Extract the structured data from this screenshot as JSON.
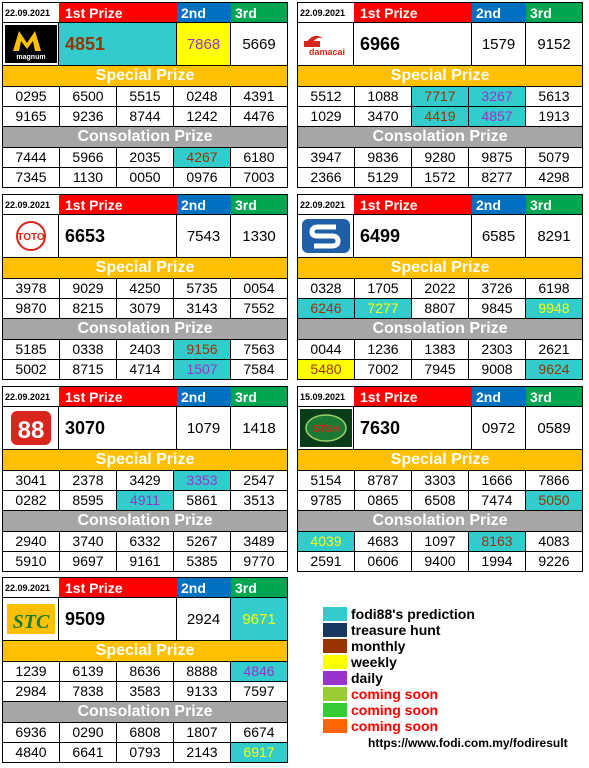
{
  "labels": {
    "first": "1st Prize",
    "second": "2nd",
    "third": "3rd",
    "special": "Special Prize",
    "consolation": "Consolation Prize"
  },
  "colors": {
    "prediction": "#33cccc",
    "treasure": "#17375e",
    "monthly": "#993300",
    "weekly": "#ffff00",
    "daily": "#9933cc",
    "soon1": "#99cc33",
    "soon2": "#33cc33",
    "soon3": "#ff6600"
  },
  "blocks": [
    {
      "id": "magnum",
      "logo": "magnum-logo",
      "date": "22.09.2021",
      "first": {
        "v": "4851",
        "bg": "prediction",
        "fg": "monthly"
      },
      "second": {
        "v": "7868",
        "bg": "weekly",
        "fg": "daily"
      },
      "third": {
        "v": "5669"
      },
      "special": [
        [
          {
            "v": "0295"
          },
          {
            "v": "6500"
          },
          {
            "v": "5515"
          },
          {
            "v": "0248"
          },
          {
            "v": "4391"
          }
        ],
        [
          {
            "v": "9165"
          },
          {
            "v": "9236"
          },
          {
            "v": "8744"
          },
          {
            "v": "1242"
          },
          {
            "v": "4476"
          }
        ]
      ],
      "consolation": [
        [
          {
            "v": "7444"
          },
          {
            "v": "5966"
          },
          {
            "v": "2035"
          },
          {
            "v": "4267",
            "bg": "prediction",
            "fg": "monthly"
          },
          {
            "v": "6180"
          }
        ],
        [
          {
            "v": "7345"
          },
          {
            "v": "1130"
          },
          {
            "v": "0050"
          },
          {
            "v": "0976"
          },
          {
            "v": "7003"
          }
        ]
      ]
    },
    {
      "id": "damacai",
      "logo": "damacai-logo",
      "date": "22.09.2021",
      "first": {
        "v": "6966"
      },
      "second": {
        "v": "1579"
      },
      "third": {
        "v": "9152"
      },
      "special": [
        [
          {
            "v": "5512"
          },
          {
            "v": "1088"
          },
          {
            "v": "7717",
            "bg": "prediction",
            "fg": "monthly"
          },
          {
            "v": "3267",
            "bg": "prediction",
            "fg": "daily"
          },
          {
            "v": "5613"
          }
        ],
        [
          {
            "v": "1029"
          },
          {
            "v": "3470"
          },
          {
            "v": "4419",
            "bg": "prediction",
            "fg": "monthly"
          },
          {
            "v": "4857",
            "bg": "prediction",
            "fg": "daily"
          },
          {
            "v": "1913"
          }
        ]
      ],
      "consolation": [
        [
          {
            "v": "3947"
          },
          {
            "v": "9836"
          },
          {
            "v": "9280"
          },
          {
            "v": "9875"
          },
          {
            "v": "5079"
          }
        ],
        [
          {
            "v": "2366"
          },
          {
            "v": "5129"
          },
          {
            "v": "1572"
          },
          {
            "v": "8277"
          },
          {
            "v": "4298"
          }
        ]
      ]
    },
    {
      "id": "toto",
      "logo": "toto-logo",
      "date": "22.09.2021",
      "first": {
        "v": "6653"
      },
      "second": {
        "v": "7543"
      },
      "third": {
        "v": "1330"
      },
      "special": [
        [
          {
            "v": "3978"
          },
          {
            "v": "9029"
          },
          {
            "v": "4250"
          },
          {
            "v": "5735"
          },
          {
            "v": "0054"
          }
        ],
        [
          {
            "v": "9870"
          },
          {
            "v": "8215"
          },
          {
            "v": "3079"
          },
          {
            "v": "3143"
          },
          {
            "v": "7552"
          }
        ]
      ],
      "consolation": [
        [
          {
            "v": "5185"
          },
          {
            "v": "0338"
          },
          {
            "v": "2403"
          },
          {
            "v": "9156",
            "bg": "prediction",
            "fg": "monthly"
          },
          {
            "v": "7563"
          }
        ],
        [
          {
            "v": "5002"
          },
          {
            "v": "8715"
          },
          {
            "v": "4714"
          },
          {
            "v": "1507",
            "bg": "prediction",
            "fg": "daily"
          },
          {
            "v": "7584"
          }
        ]
      ]
    },
    {
      "id": "singapore",
      "logo": "singapore-logo",
      "date": "22.09.2021",
      "first": {
        "v": "6499"
      },
      "second": {
        "v": "6585"
      },
      "third": {
        "v": "8291"
      },
      "special": [
        [
          {
            "v": "0328"
          },
          {
            "v": "1705"
          },
          {
            "v": "2022"
          },
          {
            "v": "3726"
          },
          {
            "v": "6198"
          }
        ],
        [
          {
            "v": "6246",
            "bg": "prediction",
            "fg": "monthly"
          },
          {
            "v": "7277",
            "bg": "prediction",
            "fg": "weekly"
          },
          {
            "v": "8807"
          },
          {
            "v": "9845"
          },
          {
            "v": "9948",
            "bg": "prediction",
            "fg": "weekly"
          }
        ]
      ],
      "consolation": [
        [
          {
            "v": "0044"
          },
          {
            "v": "1236"
          },
          {
            "v": "1383"
          },
          {
            "v": "2303"
          },
          {
            "v": "2621"
          }
        ],
        [
          {
            "v": "5480",
            "bg": "weekly",
            "fg": "monthly"
          },
          {
            "v": "7002"
          },
          {
            "v": "7945"
          },
          {
            "v": "9008"
          },
          {
            "v": "9624",
            "bg": "prediction",
            "fg": "monthly"
          }
        ]
      ]
    },
    {
      "id": "88",
      "logo": "88-logo",
      "date": "22.09.2021",
      "first": {
        "v": "3070"
      },
      "second": {
        "v": "1079"
      },
      "third": {
        "v": "1418"
      },
      "special": [
        [
          {
            "v": "3041"
          },
          {
            "v": "2378"
          },
          {
            "v": "3429"
          },
          {
            "v": "3353",
            "bg": "prediction",
            "fg": "daily"
          },
          {
            "v": "2547"
          }
        ],
        [
          {
            "v": "0282"
          },
          {
            "v": "8595"
          },
          {
            "v": "4911",
            "bg": "prediction",
            "fg": "daily"
          },
          {
            "v": "5861"
          },
          {
            "v": "3513"
          }
        ]
      ],
      "consolation": [
        [
          {
            "v": "2940"
          },
          {
            "v": "3740"
          },
          {
            "v": "6332"
          },
          {
            "v": "5267"
          },
          {
            "v": "3489"
          }
        ],
        [
          {
            "v": "5910"
          },
          {
            "v": "9697"
          },
          {
            "v": "9161"
          },
          {
            "v": "5385"
          },
          {
            "v": "9770"
          }
        ]
      ]
    },
    {
      "id": "sabah",
      "logo": "sabah-logo",
      "date": "15.09.2021",
      "first": {
        "v": "7630"
      },
      "second": {
        "v": "0972"
      },
      "third": {
        "v": "0589"
      },
      "special": [
        [
          {
            "v": "5154"
          },
          {
            "v": "8787"
          },
          {
            "v": "3303"
          },
          {
            "v": "1666"
          },
          {
            "v": "7866"
          }
        ],
        [
          {
            "v": "9785"
          },
          {
            "v": "0865"
          },
          {
            "v": "6508"
          },
          {
            "v": "7474"
          },
          {
            "v": "5050",
            "bg": "prediction",
            "fg": "monthly"
          }
        ]
      ],
      "consolation": [
        [
          {
            "v": "4039",
            "bg": "prediction",
            "fg": "weekly"
          },
          {
            "v": "4683"
          },
          {
            "v": "1097"
          },
          {
            "v": "8163",
            "bg": "prediction",
            "fg": "monthly"
          },
          {
            "v": "4083"
          }
        ],
        [
          {
            "v": "2591"
          },
          {
            "v": "0606"
          },
          {
            "v": "9400"
          },
          {
            "v": "1994"
          },
          {
            "v": "9226"
          }
        ]
      ]
    },
    {
      "id": "stc",
      "logo": "stc-logo",
      "date": "22.09.2021",
      "first": {
        "v": "9509"
      },
      "second": {
        "v": "2924"
      },
      "third": {
        "v": "9671",
        "bg": "prediction",
        "fg": "weekly"
      },
      "special": [
        [
          {
            "v": "1239"
          },
          {
            "v": "6139"
          },
          {
            "v": "8636"
          },
          {
            "v": "8888"
          },
          {
            "v": "4846",
            "bg": "prediction",
            "fg": "daily"
          }
        ],
        [
          {
            "v": "2984"
          },
          {
            "v": "7838"
          },
          {
            "v": "3583"
          },
          {
            "v": "9133"
          },
          {
            "v": "7597"
          }
        ]
      ],
      "consolation": [
        [
          {
            "v": "6936"
          },
          {
            "v": "0290"
          },
          {
            "v": "6808"
          },
          {
            "v": "1807"
          },
          {
            "v": "6674"
          }
        ],
        [
          {
            "v": "4840"
          },
          {
            "v": "6641"
          },
          {
            "v": "0793"
          },
          {
            "v": "2143"
          },
          {
            "v": "6917",
            "bg": "prediction",
            "fg": "weekly"
          }
        ]
      ]
    }
  ],
  "legend": [
    {
      "color": "prediction",
      "label": "fodi88's prediction",
      "fg": "#000000"
    },
    {
      "color": "treasure",
      "label": "treasure hunt",
      "fg": "#000000"
    },
    {
      "color": "monthly",
      "label": "monthly",
      "fg": "#000000"
    },
    {
      "color": "weekly",
      "label": "weekly",
      "fg": "#000000"
    },
    {
      "color": "daily",
      "label": "daily",
      "fg": "#000000"
    },
    {
      "color": "soon1",
      "label": "coming soon",
      "fg": "#ff0000"
    },
    {
      "color": "soon2",
      "label": "coming soon",
      "fg": "#ff0000"
    },
    {
      "color": "soon3",
      "label": "coming soon",
      "fg": "#ff0000"
    }
  ],
  "url": "https://www.fodi.com.my/fodiresult"
}
